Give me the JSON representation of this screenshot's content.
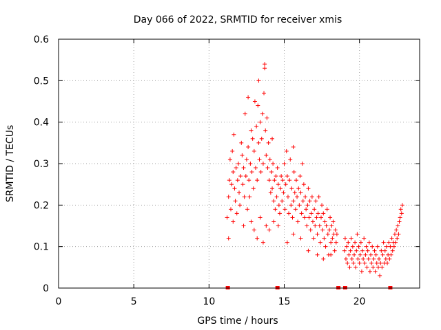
{
  "chart_data": {
    "type": "scatter",
    "title": "Day 066 of 2022, SRMTID for receiver xmis",
    "xlabel": "GPS time / hours",
    "ylabel": "SRMTID / TECUs",
    "xlim": [
      0,
      24
    ],
    "ylim": [
      0,
      0.6
    ],
    "xticks": [
      0,
      5,
      10,
      15,
      20
    ],
    "yticks": [
      0,
      0.1,
      0.2,
      0.3,
      0.4,
      0.5,
      0.6
    ],
    "ytick_labels": [
      "0",
      "0.1",
      "0.2",
      "0.3",
      "0.4",
      "0.5",
      "0.6"
    ],
    "grid": true,
    "marker": "+",
    "color": "#ff0000",
    "series": [
      {
        "name": "SRMTID",
        "points": [
          [
            11.2,
            0.17
          ],
          [
            11.3,
            0.22
          ],
          [
            11.35,
            0.26
          ],
          [
            11.4,
            0.31
          ],
          [
            11.45,
            0.19
          ],
          [
            11.5,
            0.25
          ],
          [
            11.55,
            0.33
          ],
          [
            11.6,
            0.28
          ],
          [
            11.65,
            0.37
          ],
          [
            11.7,
            0.24
          ],
          [
            11.75,
            0.21
          ],
          [
            11.8,
            0.29
          ],
          [
            11.85,
            0.18
          ],
          [
            11.9,
            0.26
          ],
          [
            11.95,
            0.3
          ],
          [
            12.0,
            0.23
          ],
          [
            12.05,
            0.2
          ],
          [
            12.1,
            0.27
          ],
          [
            12.15,
            0.35
          ],
          [
            12.2,
            0.32
          ],
          [
            12.25,
            0.25
          ],
          [
            12.3,
            0.29
          ],
          [
            12.35,
            0.22
          ],
          [
            12.4,
            0.42
          ],
          [
            12.45,
            0.27
          ],
          [
            12.5,
            0.31
          ],
          [
            12.55,
            0.19
          ],
          [
            12.6,
            0.34
          ],
          [
            12.65,
            0.26
          ],
          [
            12.7,
            0.22
          ],
          [
            12.75,
            0.3
          ],
          [
            12.8,
            0.38
          ],
          [
            12.85,
            0.28
          ],
          [
            12.9,
            0.36
          ],
          [
            12.95,
            0.24
          ],
          [
            13.0,
            0.33
          ],
          [
            13.05,
            0.45
          ],
          [
            13.1,
            0.29
          ],
          [
            13.15,
            0.39
          ],
          [
            13.2,
            0.26
          ],
          [
            13.25,
            0.44
          ],
          [
            13.3,
            0.35
          ],
          [
            13.35,
            0.31
          ],
          [
            13.4,
            0.4
          ],
          [
            13.45,
            0.28
          ],
          [
            13.5,
            0.36
          ],
          [
            13.55,
            0.42
          ],
          [
            13.6,
            0.3
          ],
          [
            13.65,
            0.47
          ],
          [
            13.7,
            0.53
          ],
          [
            13.75,
            0.38
          ],
          [
            13.8,
            0.32
          ],
          [
            13.85,
            0.41
          ],
          [
            13.9,
            0.29
          ],
          [
            13.95,
            0.35
          ],
          [
            14.0,
            0.26
          ],
          [
            14.05,
            0.31
          ],
          [
            14.1,
            0.23
          ],
          [
            14.15,
            0.28
          ],
          [
            14.2,
            0.24
          ],
          [
            14.25,
            0.3
          ],
          [
            14.3,
            0.21
          ],
          [
            14.35,
            0.26
          ],
          [
            14.4,
            0.19
          ],
          [
            14.45,
            0.27
          ],
          [
            14.5,
            0.22
          ],
          [
            14.55,
            0.29
          ],
          [
            14.6,
            0.25
          ],
          [
            14.65,
            0.2
          ],
          [
            14.7,
            0.18
          ],
          [
            14.75,
            0.24
          ],
          [
            14.8,
            0.27
          ],
          [
            14.85,
            0.21
          ],
          [
            14.9,
            0.26
          ],
          [
            14.95,
            0.23
          ],
          [
            15.0,
            0.3
          ],
          [
            15.05,
            0.19
          ],
          [
            15.1,
            0.25
          ],
          [
            15.15,
            0.33
          ],
          [
            15.2,
            0.27
          ],
          [
            15.25,
            0.22
          ],
          [
            15.3,
            0.18
          ],
          [
            15.35,
            0.26
          ],
          [
            15.4,
            0.31
          ],
          [
            15.45,
            0.2
          ],
          [
            15.5,
            0.24
          ],
          [
            15.55,
            0.17
          ],
          [
            15.6,
            0.21
          ],
          [
            15.65,
            0.28
          ],
          [
            15.7,
            0.23
          ],
          [
            15.75,
            0.19
          ],
          [
            15.8,
            0.26
          ],
          [
            15.85,
            0.22
          ],
          [
            15.9,
            0.16
          ],
          [
            15.95,
            0.24
          ],
          [
            16.0,
            0.2
          ],
          [
            16.05,
            0.27
          ],
          [
            16.1,
            0.23
          ],
          [
            16.15,
            0.18
          ],
          [
            16.2,
            0.3
          ],
          [
            16.25,
            0.21
          ],
          [
            16.3,
            0.25
          ],
          [
            16.35,
            0.17
          ],
          [
            16.4,
            0.22
          ],
          [
            16.45,
            0.19
          ],
          [
            16.5,
            0.15
          ],
          [
            16.55,
            0.2
          ],
          [
            16.6,
            0.24
          ],
          [
            16.65,
            0.17
          ],
          [
            16.7,
            0.21
          ],
          [
            16.75,
            0.14
          ],
          [
            16.8,
            0.18
          ],
          [
            16.85,
            0.22
          ],
          [
            16.9,
            0.16
          ],
          [
            16.95,
            0.12
          ],
          [
            17.0,
            0.19
          ],
          [
            17.05,
            0.15
          ],
          [
            17.1,
            0.21
          ],
          [
            17.15,
            0.17
          ],
          [
            17.2,
            0.13
          ],
          [
            17.25,
            0.18
          ],
          [
            17.3,
            0.22
          ],
          [
            17.35,
            0.15
          ],
          [
            17.4,
            0.11
          ],
          [
            17.45,
            0.17
          ],
          [
            17.5,
            0.2
          ],
          [
            17.55,
            0.14
          ],
          [
            17.6,
            0.18
          ],
          [
            17.65,
            0.12
          ],
          [
            17.7,
            0.16
          ],
          [
            17.75,
            0.1
          ],
          [
            17.8,
            0.15
          ],
          [
            17.85,
            0.19
          ],
          [
            17.9,
            0.13
          ],
          [
            17.95,
            0.08
          ],
          [
            18.0,
            0.14
          ],
          [
            18.05,
            0.17
          ],
          [
            18.1,
            0.11
          ],
          [
            18.15,
            0.15
          ],
          [
            18.2,
            0.12
          ],
          [
            18.25,
            0.16
          ],
          [
            18.3,
            0.13
          ],
          [
            18.35,
            0.09
          ],
          [
            18.4,
            0.14
          ],
          [
            18.45,
            0.11
          ],
          [
            18.5,
            0.13
          ],
          [
            19.0,
            0.09
          ],
          [
            19.05,
            0.12
          ],
          [
            19.1,
            0.07
          ],
          [
            19.15,
            0.1
          ],
          [
            19.2,
            0.06
          ],
          [
            19.25,
            0.11
          ],
          [
            19.3,
            0.08
          ],
          [
            19.35,
            0.05
          ],
          [
            19.4,
            0.09
          ],
          [
            19.45,
            0.12
          ],
          [
            19.5,
            0.07
          ],
          [
            19.55,
            0.1
          ],
          [
            19.6,
            0.06
          ],
          [
            19.65,
            0.08
          ],
          [
            19.7,
            0.11
          ],
          [
            19.75,
            0.05
          ],
          [
            19.8,
            0.09
          ],
          [
            19.85,
            0.13
          ],
          [
            19.9,
            0.07
          ],
          [
            19.95,
            0.1
          ],
          [
            20.0,
            0.06
          ],
          [
            20.05,
            0.08
          ],
          [
            20.1,
            0.11
          ],
          [
            20.15,
            0.04
          ],
          [
            20.2,
            0.09
          ],
          [
            20.25,
            0.07
          ],
          [
            20.3,
            0.12
          ],
          [
            20.35,
            0.06
          ],
          [
            20.4,
            0.08
          ],
          [
            20.45,
            0.1
          ],
          [
            20.5,
            0.05
          ],
          [
            20.55,
            0.09
          ],
          [
            20.6,
            0.07
          ],
          [
            20.65,
            0.11
          ],
          [
            20.7,
            0.04
          ],
          [
            20.75,
            0.08
          ],
          [
            20.8,
            0.06
          ],
          [
            20.85,
            0.1
          ],
          [
            20.9,
            0.05
          ],
          [
            20.95,
            0.07
          ],
          [
            21.0,
            0.09
          ],
          [
            21.05,
            0.04
          ],
          [
            21.1,
            0.08
          ],
          [
            21.15,
            0.06
          ],
          [
            21.2,
            0.1
          ],
          [
            21.25,
            0.05
          ],
          [
            21.3,
            0.07
          ],
          [
            21.35,
            0.03
          ],
          [
            21.4,
            0.06
          ],
          [
            21.45,
            0.09
          ],
          [
            21.5,
            0.05
          ],
          [
            21.55,
            0.08
          ],
          [
            21.6,
            0.11
          ],
          [
            21.65,
            0.06
          ],
          [
            21.7,
            0.09
          ],
          [
            21.75,
            0.07
          ],
          [
            21.8,
            0.1
          ],
          [
            21.85,
            0.06
          ],
          [
            21.9,
            0.08
          ],
          [
            21.95,
            0.11
          ],
          [
            22.0,
            0.07
          ],
          [
            22.05,
            0.1
          ],
          [
            22.1,
            0.08
          ],
          [
            22.15,
            0.12
          ],
          [
            22.2,
            0.09
          ],
          [
            22.25,
            0.11
          ],
          [
            22.3,
            0.1
          ],
          [
            22.35,
            0.13
          ],
          [
            22.4,
            0.11
          ],
          [
            22.45,
            0.14
          ],
          [
            22.5,
            0.12
          ],
          [
            22.55,
            0.15
          ],
          [
            22.6,
            0.13
          ],
          [
            22.65,
            0.16
          ],
          [
            22.7,
            0.17
          ],
          [
            22.75,
            0.19
          ],
          [
            22.8,
            0.18
          ],
          [
            22.85,
            0.2
          ],
          [
            11.3,
            0.12
          ],
          [
            11.6,
            0.16
          ],
          [
            12.3,
            0.15
          ],
          [
            12.8,
            0.16
          ],
          [
            13.0,
            0.14
          ],
          [
            13.2,
            0.12
          ],
          [
            13.4,
            0.17
          ],
          [
            13.6,
            0.11
          ],
          [
            13.8,
            0.15
          ],
          [
            14.0,
            0.14
          ],
          [
            14.3,
            0.16
          ],
          [
            14.6,
            0.15
          ],
          [
            15.2,
            0.11
          ],
          [
            15.6,
            0.13
          ],
          [
            16.1,
            0.12
          ],
          [
            16.6,
            0.09
          ],
          [
            17.2,
            0.08
          ],
          [
            17.6,
            0.07
          ],
          [
            18.1,
            0.08
          ],
          [
            12.6,
            0.46
          ],
          [
            13.7,
            0.54
          ],
          [
            13.3,
            0.5
          ],
          [
            14.2,
            0.36
          ],
          [
            15.6,
            0.34
          ]
        ]
      }
    ],
    "baseline_marks_x": [
      11.25,
      14.55,
      18.6,
      19.05,
      22.05
    ]
  }
}
